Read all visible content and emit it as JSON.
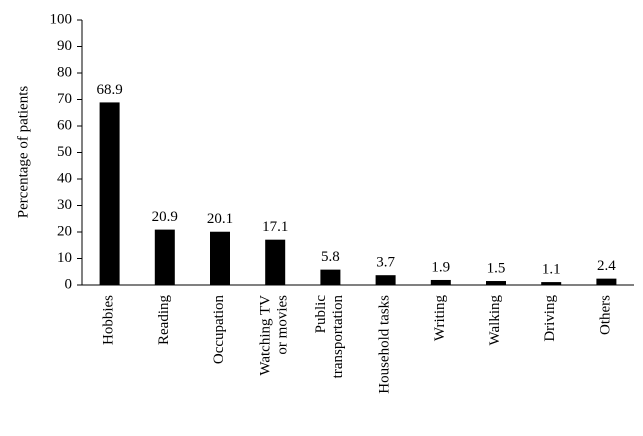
{
  "chart_data": {
    "type": "bar",
    "y_label": "Percentage of patients",
    "categories": [
      "Hobbies",
      "Reading",
      "Occupation",
      "Watching TV\nor movies",
      "Public\ntransportation",
      "Household tasks",
      "Writing",
      "Walking",
      "Driving",
      "Others"
    ],
    "values": [
      68.9,
      20.9,
      20.1,
      17.1,
      5.8,
      3.7,
      1.9,
      1.5,
      1.1,
      2.4
    ],
    "color": "#000000",
    "ylim": [
      0,
      100
    ],
    "yticks": [
      0,
      10,
      20,
      30,
      40,
      50,
      60,
      70,
      80,
      90,
      100
    ],
    "grid": false
  }
}
